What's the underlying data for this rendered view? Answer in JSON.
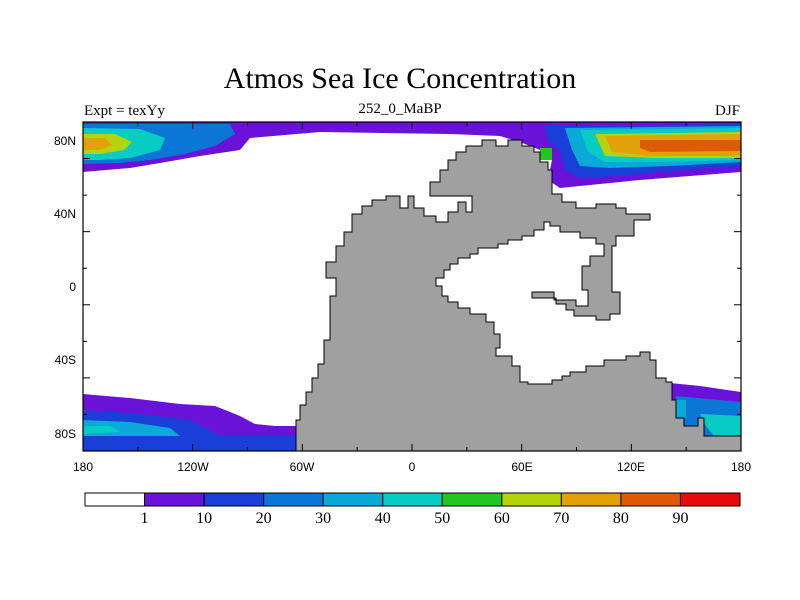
{
  "title": "Atmos Sea Ice Concentration",
  "left_label": "Expt = texYy",
  "center_label": "252_0_MaBP",
  "right_label": "DJF",
  "x_ticks": [
    "180",
    "120W",
    "60W",
    "0",
    "60E",
    "120E",
    "180"
  ],
  "y_ticks": [
    "80N",
    "40N",
    "0",
    "40S",
    "80S"
  ],
  "colorbar": {
    "labels": [
      "1",
      "10",
      "20",
      "30",
      "40",
      "50",
      "60",
      "70",
      "80",
      "90"
    ],
    "colors": [
      "#ffffff",
      "#6a12d9",
      "#1a3ed8",
      "#0c76d6",
      "#0aa9d8",
      "#06ccc4",
      "#22c522",
      "#b4d30b",
      "#e2a108",
      "#df5a07",
      "#e60a0a"
    ]
  },
  "colors": {
    "land": "#a0a0a0",
    "frame": "#000000"
  }
}
